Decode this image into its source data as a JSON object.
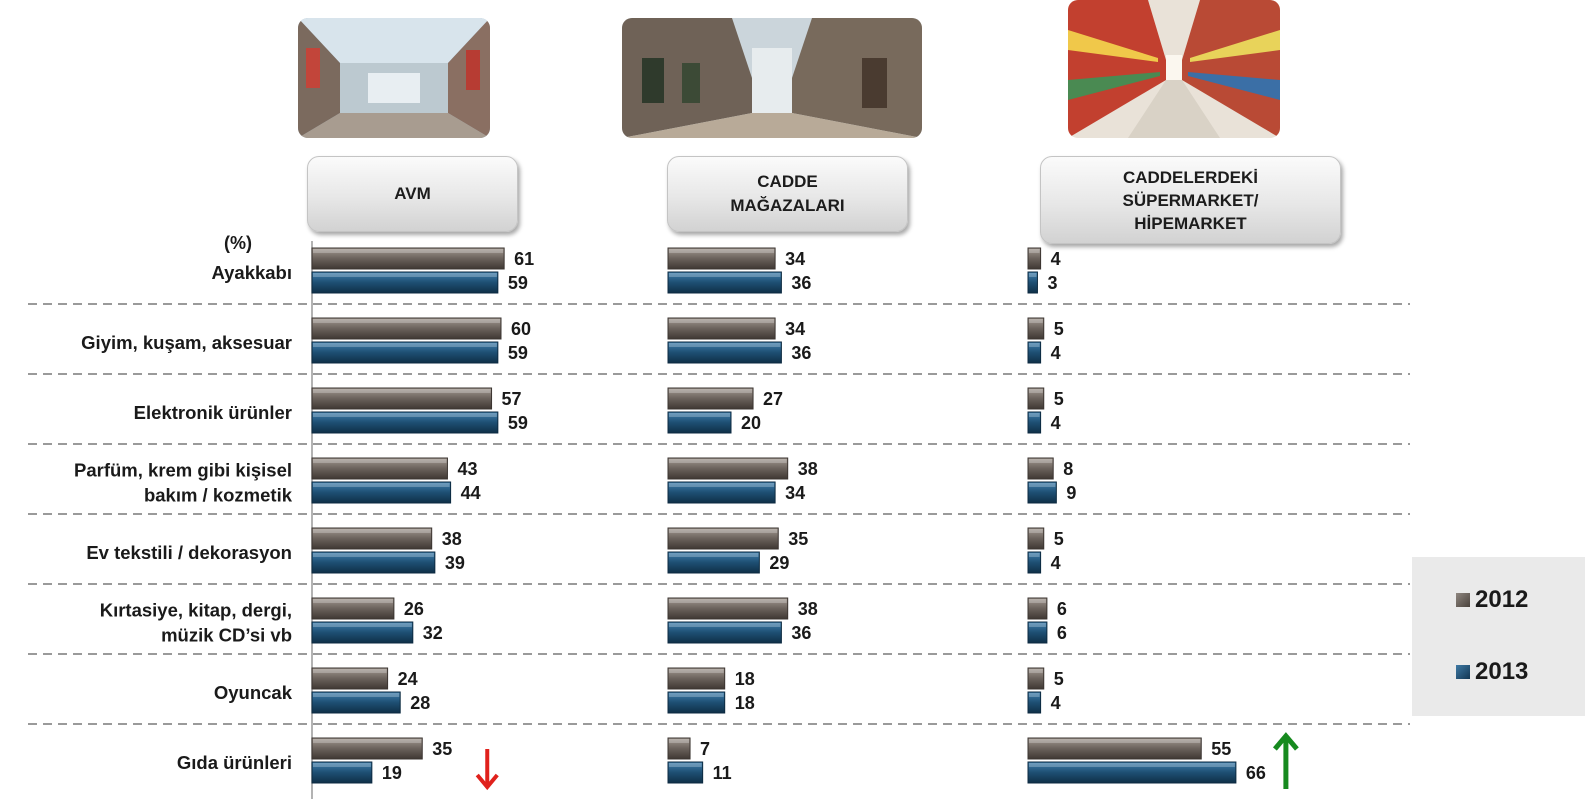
{
  "chart_data": {
    "type": "bar",
    "orientation": "horizontal",
    "unit_label": "(%)",
    "categories": [
      [
        "Ayakkabı"
      ],
      [
        "Giyim, kuşam, aksesuar"
      ],
      [
        "Elektronik ürünler"
      ],
      [
        "Parfüm, krem gibi kişisel",
        "bakım / kozmetik"
      ],
      [
        "Ev tekstili / dekorasyon"
      ],
      [
        "Kırtasiye, kitap, dergi,",
        "müzik CD’si vb"
      ],
      [
        "Oyuncak"
      ],
      [
        "Gıda ürünleri"
      ]
    ],
    "panels": [
      {
        "header": [
          "AVM"
        ],
        "series": [
          {
            "name": "2012",
            "values": [
              61,
              60,
              57,
              43,
              38,
              26,
              24,
              35
            ]
          },
          {
            "name": "2013",
            "values": [
              59,
              59,
              59,
              44,
              39,
              32,
              28,
              19
            ]
          }
        ]
      },
      {
        "header": [
          "CADDE",
          "MAĞAZALARI"
        ],
        "series": [
          {
            "name": "2012",
            "values": [
              34,
              34,
              27,
              38,
              35,
              38,
              18,
              7
            ]
          },
          {
            "name": "2013",
            "values": [
              36,
              36,
              20,
              34,
              29,
              36,
              18,
              11
            ]
          }
        ]
      },
      {
        "header": [
          "CADDELERDEKİ",
          "SÜPERMARKET/",
          "HİPEMARKET"
        ],
        "series": [
          {
            "name": "2012",
            "values": [
              4,
              5,
              5,
              8,
              5,
              6,
              5,
              55
            ]
          },
          {
            "name": "2013",
            "values": [
              3,
              4,
              4,
              9,
              4,
              6,
              4,
              66
            ]
          }
        ]
      }
    ],
    "legend": {
      "placement": "right",
      "entries": [
        "2012",
        "2013"
      ]
    },
    "annotations": [
      {
        "panel": 0,
        "category": "Gıda ürünleri",
        "icon": "arrow-down-icon",
        "meaning": "decrease",
        "color": "#e0211c"
      },
      {
        "panel": 2,
        "category": "Gıda ürünleri",
        "icon": "arrow-up-icon",
        "meaning": "increase",
        "color": "#178a1f"
      }
    ],
    "colors": {
      "2012": "#6b625c",
      "2013": "#1e4f73",
      "separator": "#9a9a9a"
    },
    "images": [
      "shopping-mall-photo",
      "shopping-street-photo",
      "supermarket-aisle-photo"
    ]
  }
}
